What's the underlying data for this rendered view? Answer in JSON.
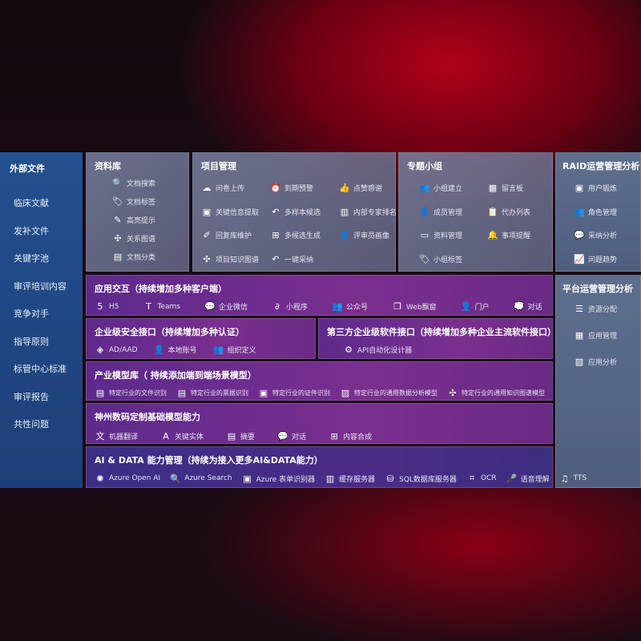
{
  "external": {
    "title": "外部文件",
    "items": [
      "临床文献",
      "发补文件",
      "关键字池",
      "审评培训内容",
      "竞争对手",
      "指导原则",
      "标管中心标准",
      "审评报告",
      "共性问题"
    ]
  },
  "library": {
    "title": "资料库",
    "items": [
      {
        "icon": "doc-search-icon",
        "g": "🔍",
        "label": "文档搜索"
      },
      {
        "icon": "tag-icon",
        "g": "🏷",
        "label": "文档标签"
      },
      {
        "icon": "pen-icon",
        "g": "✎",
        "label": "高亮提示"
      },
      {
        "icon": "graph-icon",
        "g": "✣",
        "label": "关系图谱"
      },
      {
        "icon": "doc-classify-icon",
        "g": "▤",
        "label": "文档分类"
      }
    ]
  },
  "project": {
    "title": "项目管理",
    "items": [
      {
        "icon": "cloud-upload-icon",
        "g": "☁",
        "label": "问卷上传"
      },
      {
        "icon": "alarm-icon",
        "g": "⏰",
        "label": "到期预警"
      },
      {
        "icon": "thumbs-up-icon",
        "g": "👍",
        "label": "点赞感谢"
      },
      {
        "icon": "extract-icon",
        "g": "▣",
        "label": "关键信息提取"
      },
      {
        "icon": "reply-icon",
        "g": "↶",
        "label": "多样本候选"
      },
      {
        "icon": "ranking-icon",
        "g": "▥",
        "label": "内部专家排名"
      },
      {
        "icon": "edit-icon",
        "g": "✐",
        "label": "回复库维护"
      },
      {
        "icon": "puzzle-icon",
        "g": "⊞",
        "label": "多候选生成"
      },
      {
        "icon": "user-icon",
        "g": "👤",
        "label": "评审员画像"
      },
      {
        "icon": "network-icon",
        "g": "✣",
        "label": "项目知识图谱"
      },
      {
        "icon": "reply-icon",
        "g": "↶",
        "label": "一键采纳"
      }
    ]
  },
  "group": {
    "title": "专题小组",
    "items": [
      {
        "icon": "users-icon",
        "g": "👥",
        "label": "小组建立"
      },
      {
        "icon": "bbs-icon",
        "g": "▦",
        "label": "留言板"
      },
      {
        "icon": "user-add-icon",
        "g": "👤",
        "label": "成员管理"
      },
      {
        "icon": "clipboard-icon",
        "g": "📋",
        "label": "代办列表"
      },
      {
        "icon": "folder-icon",
        "g": "▭",
        "label": "资料管理"
      },
      {
        "icon": "bell-icon",
        "g": "🔔",
        "label": "事项提醒"
      },
      {
        "icon": "tag-icon",
        "g": "🏷",
        "label": "小组标签"
      }
    ]
  },
  "raid": {
    "title": "RAID运营管理分析",
    "items": [
      {
        "icon": "id-card-icon",
        "g": "▣",
        "label": "用户锻炼"
      },
      {
        "icon": "users-icon",
        "g": "👥",
        "label": "角色管理"
      },
      {
        "icon": "qa-icon",
        "g": "💬",
        "label": "采纳分析"
      },
      {
        "icon": "trend-icon",
        "g": "📈",
        "label": "问题趋势"
      }
    ]
  },
  "platform": {
    "title": "平台运营管理分析",
    "items": [
      {
        "icon": "list-icon",
        "g": "☰",
        "label": "资源分配"
      },
      {
        "icon": "apps-icon",
        "g": "▦",
        "label": "应用管理"
      },
      {
        "icon": "chart-icon",
        "g": "▨",
        "label": "应用分析"
      }
    ]
  },
  "interaction": {
    "title": "应用交互（持续增加多种客户端）",
    "items": [
      {
        "icon": "html5-icon",
        "g": "5",
        "label": "H5"
      },
      {
        "icon": "teams-icon",
        "g": "T",
        "label": "Teams"
      },
      {
        "icon": "wechat-work-icon",
        "g": "💬",
        "label": "企业微信"
      },
      {
        "icon": "miniprogram-icon",
        "g": "∂",
        "label": "小程序"
      },
      {
        "icon": "public-account-icon",
        "g": "👥",
        "label": "公众号"
      },
      {
        "icon": "window-icon",
        "g": "❐",
        "label": "Web飘窗"
      },
      {
        "icon": "portal-icon",
        "g": "👤",
        "label": "门户"
      },
      {
        "icon": "chat-icon",
        "g": "💭",
        "label": "对话"
      }
    ]
  },
  "security": {
    "title": "企业级安全接口（持续增加多种认证）",
    "items": [
      {
        "icon": "ad-icon",
        "g": "◈",
        "label": "AD/AAD"
      },
      {
        "icon": "local-account-icon",
        "g": "👤",
        "label": "本地账号"
      },
      {
        "icon": "org-icon",
        "g": "👥",
        "label": "组织定义"
      }
    ]
  },
  "thirdparty": {
    "title": "第三方企业级软件接口（持续增加多种企业主流软件接口）",
    "items": [
      {
        "icon": "api-gear-icon",
        "g": "⚙",
        "label": "API自动化设计器"
      }
    ]
  },
  "industry": {
    "title": "产业模型库（ 持续添加端到端场景模型）",
    "items": [
      {
        "icon": "file-icon",
        "g": "▤",
        "label": "特定行业的文件识别"
      },
      {
        "icon": "receipt-icon",
        "g": "▤",
        "label": "特定行业的票据识别"
      },
      {
        "icon": "id-card-icon",
        "g": "▣",
        "label": "特定行业的证件识别"
      },
      {
        "icon": "data-analysis-icon",
        "g": "▨",
        "label": "特定行业的通用数据分析模型"
      },
      {
        "icon": "network-icon",
        "g": "✣",
        "label": "特定行业的通用知识图谱模型"
      }
    ]
  },
  "base": {
    "title": "神州数码定制基础模型能力",
    "items": [
      {
        "icon": "translate-icon",
        "g": "文",
        "label": "机器翻译"
      },
      {
        "icon": "entity-icon",
        "g": "A",
        "label": "关键实体"
      },
      {
        "icon": "summary-icon",
        "g": "▤",
        "label": "摘要"
      },
      {
        "icon": "chat-icon",
        "g": "💬",
        "label": "对话"
      },
      {
        "icon": "compose-icon",
        "g": "⊞",
        "label": "内容合成"
      }
    ]
  },
  "ai": {
    "title": "AI & DATA 能力管理（持续为接入更多AI&DATA能力）",
    "items": [
      {
        "icon": "openai-icon",
        "g": "✺",
        "label": "Azure Open AI"
      },
      {
        "icon": "search-doc-icon",
        "g": "🔍",
        "label": "Azure Search"
      },
      {
        "icon": "form-recognizer-icon",
        "g": "▣",
        "label": "Azure 表单识别器"
      },
      {
        "icon": "cache-server-icon",
        "g": "▥",
        "label": "缓存服务器"
      },
      {
        "icon": "sql-icon",
        "g": "⛁",
        "label": "SQL数据库服务器"
      },
      {
        "icon": "ocr-icon",
        "g": "⌗",
        "label": "OCR"
      },
      {
        "icon": "speech-icon",
        "g": "🎤",
        "label": "语音理解"
      },
      {
        "icon": "tts-icon",
        "g": "♫",
        "label": "TTS"
      }
    ]
  }
}
